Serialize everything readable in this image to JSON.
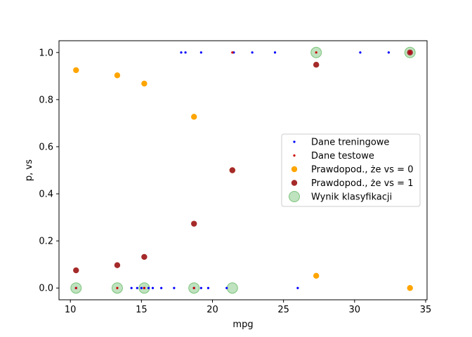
{
  "chart_data": {
    "type": "scatter",
    "xlabel": "mpg",
    "ylabel": "p, vs",
    "xlim": [
      9.2,
      35.1
    ],
    "ylim": [
      -0.05,
      1.05
    ],
    "x_ticks": [
      10,
      15,
      20,
      25,
      30,
      35
    ],
    "y_ticks": [
      0.0,
      0.2,
      0.4,
      0.6,
      0.8,
      1.0
    ],
    "x_tick_labels": [
      "10",
      "15",
      "20",
      "25",
      "30",
      "35"
    ],
    "y_tick_labels": [
      "0.0",
      "0.2",
      "0.4",
      "0.6",
      "0.8",
      "1.0"
    ],
    "grid": false,
    "legend_position": "center-right",
    "series": [
      {
        "name": "Dane treningowe",
        "color": "#0000ff",
        "marker": "dot-small",
        "points": [
          [
            17.8,
            1
          ],
          [
            18.1,
            1
          ],
          [
            19.2,
            1
          ],
          [
            21.5,
            1
          ],
          [
            22.8,
            1
          ],
          [
            24.4,
            1
          ],
          [
            30.4,
            1
          ],
          [
            32.4,
            1
          ],
          [
            33.9,
            1
          ],
          [
            10.4,
            0
          ],
          [
            14.3,
            0
          ],
          [
            14.7,
            0
          ],
          [
            15.0,
            0
          ],
          [
            15.2,
            0
          ],
          [
            15.5,
            0
          ],
          [
            15.8,
            0
          ],
          [
            16.4,
            0
          ],
          [
            17.3,
            0
          ],
          [
            18.7,
            0
          ],
          [
            19.2,
            0
          ],
          [
            19.7,
            0
          ],
          [
            21.0,
            0
          ],
          [
            26.0,
            0
          ]
        ]
      },
      {
        "name": "Dane testowe",
        "color": "#cc0000",
        "marker": "dot-small",
        "points": [
          [
            10.4,
            0
          ],
          [
            13.3,
            0
          ],
          [
            15.2,
            0
          ],
          [
            18.7,
            0
          ],
          [
            21.4,
            1
          ],
          [
            27.3,
            1
          ],
          [
            33.9,
            1
          ]
        ]
      },
      {
        "name": "Prawdopod., że vs = 0",
        "color": "#ffa500",
        "marker": "dot",
        "points": [
          [
            10.4,
            0.925
          ],
          [
            13.3,
            0.903
          ],
          [
            15.2,
            0.868
          ],
          [
            18.7,
            0.727
          ],
          [
            21.4,
            0.5
          ],
          [
            27.3,
            0.052
          ],
          [
            33.9,
            0.0
          ]
        ]
      },
      {
        "name": "Prawdopod., że vs = 1",
        "color": "#a52a2a",
        "marker": "dot",
        "points": [
          [
            10.4,
            0.075
          ],
          [
            13.3,
            0.097
          ],
          [
            15.2,
            0.132
          ],
          [
            18.7,
            0.273
          ],
          [
            21.4,
            0.5
          ],
          [
            27.3,
            0.948
          ],
          [
            33.9,
            1.0
          ]
        ]
      },
      {
        "name": "Wynik klasyfikacji",
        "color": "#2ca02c",
        "marker": "circle-large-translucent",
        "points": [
          [
            10.4,
            0
          ],
          [
            13.3,
            0
          ],
          [
            15.2,
            0
          ],
          [
            18.7,
            0
          ],
          [
            21.4,
            0
          ],
          [
            27.3,
            1
          ],
          [
            33.9,
            1
          ]
        ]
      }
    ]
  }
}
